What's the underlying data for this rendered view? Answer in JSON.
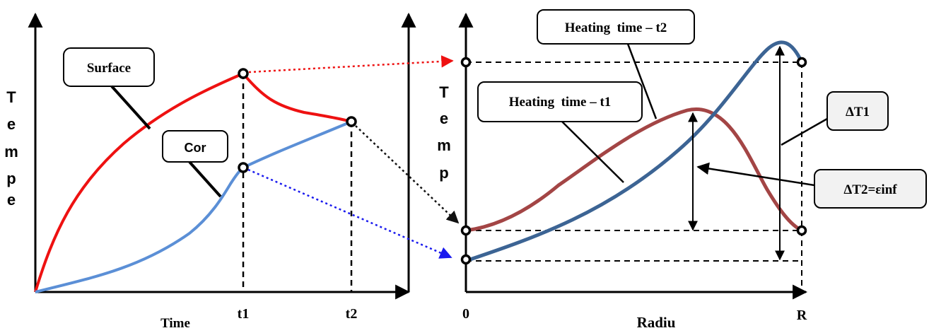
{
  "left_diagram": {
    "y_axis_label": [
      "T",
      "e",
      "m",
      "p",
      "e"
    ],
    "x_axis_label": "Time",
    "tick_labels": [
      "t1",
      "t2"
    ],
    "callouts": {
      "surface": "Surface",
      "core": "Cor"
    },
    "colors": {
      "surface_curve": "#ee1111",
      "core_curve": "#5b8fd6"
    }
  },
  "right_diagram": {
    "y_axis_label": [
      "T",
      "e",
      "m",
      "p"
    ],
    "x_axis_label": "Radiu",
    "x_tick_labels": [
      "0",
      "R"
    ],
    "callouts": {
      "heating_t2": "Heating  time – t2",
      "heating_t1": "Heating  time – t1",
      "delta_t1": "ΔT1",
      "delta_t2": "ΔT2=εinf"
    },
    "colors": {
      "t1_curve": "#a34545",
      "t2_curve": "#3c6494"
    }
  },
  "connectors": {
    "colors": {
      "surface": "#ee1111",
      "mid": "#111111",
      "core": "#1a1aee"
    }
  }
}
